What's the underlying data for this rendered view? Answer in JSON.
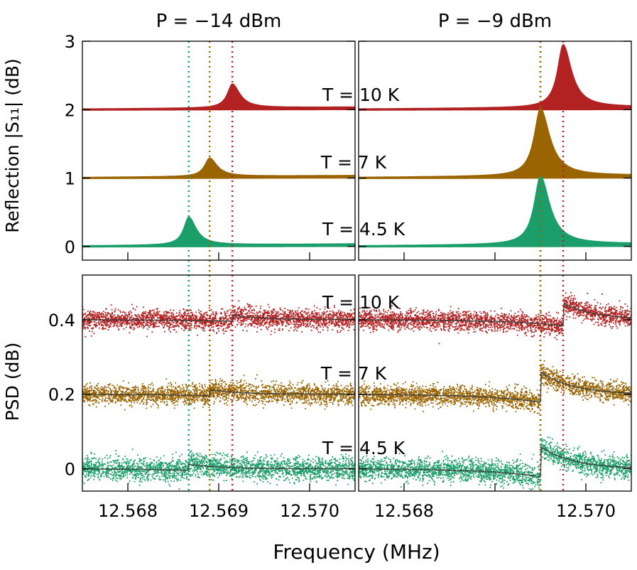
{
  "figure": {
    "xlabel": "Frequency (MHz)",
    "ylabel_top": "Reflection |S₁₁| (dB)",
    "ylabel_bottom": "PSD (dB)",
    "column_titles": [
      "P = −14 dBm",
      "P = −9 dBm"
    ],
    "temperature_labels": [
      "T = 10 K",
      "T = 7 K",
      "T = 4.5 K"
    ],
    "colors": {
      "T10": "#b22222",
      "T7": "#9a6400",
      "T4_5": "#1b9e6a",
      "fit": "#3a3a3a"
    }
  },
  "chart_data": [
    {
      "type": "area",
      "panel": "reflection-left",
      "title": "P = −14 dBm",
      "xlim": [
        12.5675,
        12.5705
      ],
      "ylim": [
        -0.2,
        3.0
      ],
      "yticks": [
        0,
        1,
        2,
        3
      ],
      "xticks": [
        12.568,
        12.569,
        12.57
      ],
      "series": [
        {
          "name": "T = 10 K",
          "color": "#b22222",
          "offset": 2.0,
          "center": 12.56915,
          "peak": 0.35,
          "width": 8e-05
        },
        {
          "name": "T = 7 K",
          "color": "#9a6400",
          "offset": 1.0,
          "center": 12.5689,
          "peak": 0.27,
          "width": 8e-05
        },
        {
          "name": "T = 4.5 K",
          "color": "#1b9e6a",
          "offset": 0.0,
          "center": 12.56867,
          "peak": 0.41,
          "width": 8e-05
        }
      ],
      "vlines": [
        {
          "x": 12.56867,
          "color": "#1b9e6a"
        },
        {
          "x": 12.5689,
          "color": "#9a6400"
        },
        {
          "x": 12.56915,
          "color": "#b22222"
        }
      ]
    },
    {
      "type": "area",
      "panel": "reflection-right",
      "title": "P = −9 dBm",
      "xlim": [
        12.5675,
        12.5705
      ],
      "ylim": [
        -0.2,
        3.0
      ],
      "yticks": [
        0,
        1,
        2,
        3
      ],
      "xticks": [
        12.568,
        12.569,
        12.57
      ],
      "series": [
        {
          "name": "T = 10 K",
          "color": "#b22222",
          "offset": 2.0,
          "center": 12.56975,
          "peak": 0.92,
          "width": 9e-05
        },
        {
          "name": "T = 7 K",
          "color": "#9a6400",
          "offset": 1.0,
          "center": 12.5695,
          "peak": 0.99,
          "width": 0.0001
        },
        {
          "name": "T = 4.5 K",
          "color": "#1b9e6a",
          "offset": 0.0,
          "center": 12.5695,
          "peak": 1.0,
          "width": 0.0001
        }
      ],
      "vlines": [
        {
          "x": 12.5695,
          "color": "#1b9e6a"
        },
        {
          "x": 12.5695,
          "color": "#9a6400"
        },
        {
          "x": 12.56975,
          "color": "#b22222"
        }
      ]
    },
    {
      "type": "scatter",
      "panel": "psd-left",
      "xlim": [
        12.5675,
        12.5705
      ],
      "ylim": [
        -0.06,
        0.52
      ],
      "yticks": [
        0,
        0.2,
        0.4
      ],
      "xticks": [
        12.568,
        12.569,
        12.57
      ],
      "xticklabels": [
        "12.568",
        "12.569",
        "12.570"
      ],
      "series": [
        {
          "name": "T = 10 K",
          "color": "#b22222",
          "offset": 0.4,
          "center": 12.56915,
          "step": 0.012,
          "noise": 0.013
        },
        {
          "name": "T = 7 K",
          "color": "#9a6400",
          "offset": 0.2,
          "center": 12.5689,
          "step": 0.012,
          "noise": 0.013
        },
        {
          "name": "T = 4.5 K",
          "color": "#1b9e6a",
          "offset": 0.0,
          "center": 12.56867,
          "step": 0.012,
          "noise": 0.015
        }
      ]
    },
    {
      "type": "scatter",
      "panel": "psd-right",
      "xlim": [
        12.5675,
        12.5705
      ],
      "ylim": [
        -0.06,
        0.52
      ],
      "yticks": [
        0,
        0.2,
        0.4
      ],
      "xticks": [
        12.568,
        12.569,
        12.57
      ],
      "xticklabels": [
        "12.568",
        "",
        "12.570"
      ],
      "series": [
        {
          "name": "T = 10 K",
          "color": "#b22222",
          "offset": 0.4,
          "center": 12.56975,
          "step": 0.045,
          "noise": 0.013
        },
        {
          "name": "T = 7 K",
          "color": "#9a6400",
          "offset": 0.2,
          "center": 12.5695,
          "step": 0.06,
          "noise": 0.013
        },
        {
          "name": "T = 4.5 K",
          "color": "#1b9e6a",
          "offset": 0.0,
          "center": 12.5695,
          "step": 0.06,
          "noise": 0.015
        }
      ]
    }
  ]
}
